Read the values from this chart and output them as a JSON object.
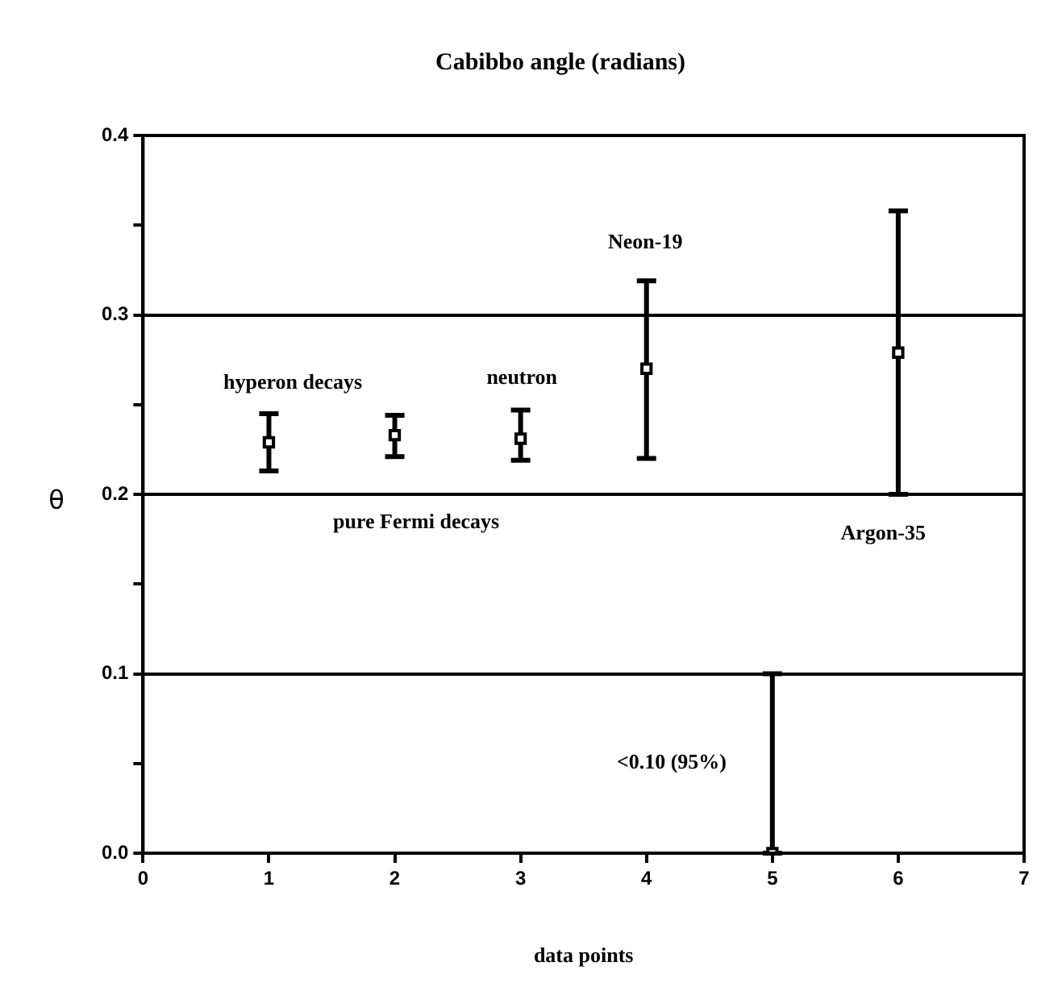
{
  "chart_data": {
    "type": "scatter",
    "title": "Cabibbo angle (radians)",
    "xlabel": "data points",
    "ylabel": "θ",
    "x": [
      1,
      2,
      3,
      4,
      5,
      6
    ],
    "series": [
      {
        "color": "#000000",
        "values": [
          0.229,
          0.233,
          0.231,
          0.27,
          0,
          0.279
        ],
        "errors": [
          [
            0.213,
            0.245
          ],
          [
            0.221,
            0.244
          ],
          [
            0.219,
            0.247
          ],
          [
            0.22,
            0.319
          ],
          [
            0,
            0.1
          ],
          [
            0.2,
            0.358
          ]
        ]
      }
    ],
    "xlim": [
      0,
      7
    ],
    "xticks": [
      0,
      1,
      2,
      3,
      4,
      5,
      6,
      7
    ],
    "ylim": [
      0,
      0.4
    ],
    "yticks": [
      {
        "value": 0,
        "label": "0.0"
      },
      {
        "value": 0.05,
        "label": null
      },
      0.1,
      {
        "value": 0.15,
        "label": null
      },
      0.2,
      {
        "value": 0.25,
        "label": null
      },
      0.3,
      {
        "value": 0.35,
        "label": null
      },
      0.4
    ],
    "grid": "y",
    "legend": false,
    "marker": "square",
    "annotations": [
      "hyperon decays",
      "neutron",
      "Neon-19",
      "pure Fermi decays",
      "Argon-35",
      "<0.10 (95%)"
    ]
  }
}
